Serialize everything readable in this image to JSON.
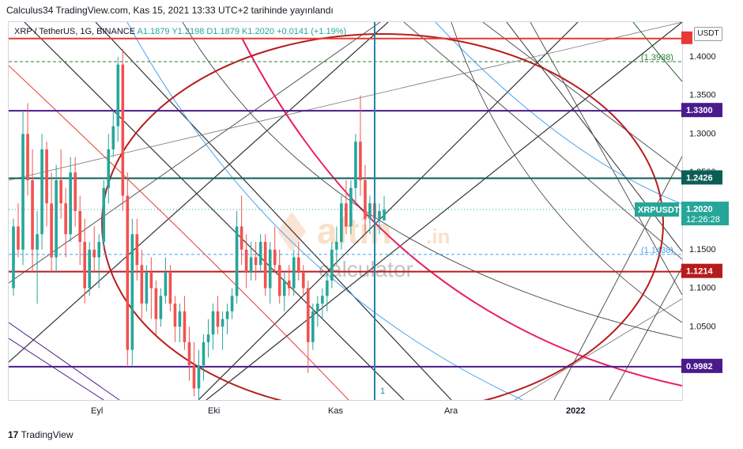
{
  "header": {
    "text": "Calculus34 TradingView.com, Kas 15, 2021 13:33 UTC+2 tarihinde yayınlandı"
  },
  "legend": {
    "symbol": "XRP / TetherUS, 1G, BINANCE",
    "o": "A1.1879",
    "h": "Y1.2198",
    "l": "D1.1879",
    "c": "K1.2020",
    "change": "+0.0141 (+1.19%)"
  },
  "axis": {
    "currency": "USDT"
  },
  "watermark": {
    "brand": "altin",
    "suffix": ".in",
    "sub": "calculator"
  },
  "footer": {
    "logo": "17",
    "brand": "TradingView"
  },
  "colors": {
    "up": "#26a69a",
    "down": "#ef5350",
    "purple": "#4a1a8c",
    "teal": "#0b5e57",
    "darkred": "#b71c1c",
    "red": "#e53935",
    "green_label": "#2e7d32",
    "blue": "#42a5f5",
    "crimson": "#e91e63"
  },
  "chart_data": {
    "type": "candlestick",
    "symbol": "XRP / TetherUS",
    "interval": "1G",
    "exchange": "BINANCE",
    "x_ticks": [
      "Eyl",
      "Eki",
      "Kas",
      "Ara",
      "2022"
    ],
    "y_ticks": [
      "1.4000",
      "1.3500",
      "1.3000",
      "1.2500",
      "1.1500",
      "1.1000",
      "1.0500"
    ],
    "ylim": [
      0.955,
      1.445
    ],
    "last_price": 1.202,
    "last_price_label": "XRPUSDT",
    "countdown": "12:26:28",
    "horizontal_levels": [
      {
        "value": 1.4237,
        "label": "",
        "color": "red"
      },
      {
        "value": 1.33,
        "label": "1.3300",
        "color": "purple"
      },
      {
        "value": 1.2426,
        "label": "1.2426",
        "color": "teal"
      },
      {
        "value": 1.1214,
        "label": "1.1214",
        "color": "darkred"
      },
      {
        "value": 0.9982,
        "label": "0.9982",
        "color": "purple"
      }
    ],
    "dashed_levels": [
      {
        "value": 1.3938,
        "label": "1.3938",
        "color": "green_label"
      },
      {
        "value": 1.1438,
        "label": "1.1438",
        "color": "blue"
      }
    ],
    "vertical_marker": {
      "label": "1"
    },
    "candles": [
      [
        1.1,
        1.19,
        1.09,
        1.18
      ],
      [
        1.18,
        1.21,
        1.14,
        1.15
      ],
      [
        1.15,
        1.33,
        1.13,
        1.3
      ],
      [
        1.3,
        1.34,
        1.22,
        1.24
      ],
      [
        1.24,
        1.28,
        1.12,
        1.15
      ],
      [
        1.15,
        1.2,
        1.08,
        1.17
      ],
      [
        1.17,
        1.3,
        1.15,
        1.28
      ],
      [
        1.28,
        1.29,
        1.18,
        1.21
      ],
      [
        1.21,
        1.25,
        1.12,
        1.14
      ],
      [
        1.14,
        1.26,
        1.12,
        1.24
      ],
      [
        1.24,
        1.28,
        1.19,
        1.21
      ],
      [
        1.21,
        1.23,
        1.14,
        1.17
      ],
      [
        1.17,
        1.27,
        1.16,
        1.25
      ],
      [
        1.25,
        1.27,
        1.18,
        1.2
      ],
      [
        1.2,
        1.22,
        1.13,
        1.16
      ],
      [
        1.16,
        1.19,
        1.08,
        1.1
      ],
      [
        1.1,
        1.16,
        1.09,
        1.15
      ],
      [
        1.15,
        1.18,
        1.12,
        1.14
      ],
      [
        1.14,
        1.17,
        1.1,
        1.16
      ],
      [
        1.16,
        1.24,
        1.15,
        1.23
      ],
      [
        1.23,
        1.3,
        1.21,
        1.28
      ],
      [
        1.28,
        1.33,
        1.27,
        1.31
      ],
      [
        1.31,
        1.4,
        1.29,
        1.39
      ],
      [
        1.39,
        1.41,
        1.2,
        1.22
      ],
      [
        1.22,
        1.25,
        1.0,
        1.02
      ],
      [
        1.02,
        1.19,
        1.0,
        1.17
      ],
      [
        1.17,
        1.19,
        1.11,
        1.13
      ],
      [
        1.13,
        1.15,
        1.06,
        1.08
      ],
      [
        1.08,
        1.13,
        1.07,
        1.12
      ],
      [
        1.12,
        1.14,
        1.06,
        1.1
      ],
      [
        1.1,
        1.11,
        1.04,
        1.06
      ],
      [
        1.06,
        1.1,
        1.05,
        1.09
      ],
      [
        1.09,
        1.14,
        1.08,
        1.12
      ],
      [
        1.12,
        1.13,
        1.07,
        1.08
      ],
      [
        1.08,
        1.09,
        1.03,
        1.05
      ],
      [
        1.05,
        1.08,
        1.03,
        1.07
      ],
      [
        1.07,
        1.09,
        1.02,
        1.03
      ],
      [
        1.03,
        1.05,
        0.98,
        1.0
      ],
      [
        1.0,
        1.03,
        0.96,
        0.97
      ],
      [
        0.97,
        1.02,
        0.95,
        1.0
      ],
      [
        1.0,
        1.04,
        0.98,
        1.03
      ],
      [
        1.03,
        1.06,
        1.01,
        1.04
      ],
      [
        1.04,
        1.08,
        1.02,
        1.07
      ],
      [
        1.07,
        1.09,
        1.04,
        1.05
      ],
      [
        1.05,
        1.07,
        1.02,
        1.06
      ],
      [
        1.06,
        1.08,
        1.04,
        1.07
      ],
      [
        1.07,
        1.1,
        1.06,
        1.09
      ],
      [
        1.09,
        1.2,
        1.08,
        1.18
      ],
      [
        1.18,
        1.22,
        1.13,
        1.15
      ],
      [
        1.15,
        1.17,
        1.1,
        1.12
      ],
      [
        1.12,
        1.16,
        1.11,
        1.14
      ],
      [
        1.14,
        1.16,
        1.11,
        1.13
      ],
      [
        1.13,
        1.17,
        1.12,
        1.16
      ],
      [
        1.16,
        1.17,
        1.09,
        1.1
      ],
      [
        1.1,
        1.16,
        1.08,
        1.15
      ],
      [
        1.15,
        1.18,
        1.12,
        1.13
      ],
      [
        1.13,
        1.15,
        1.08,
        1.09
      ],
      [
        1.09,
        1.12,
        1.07,
        1.11
      ],
      [
        1.11,
        1.13,
        1.09,
        1.1
      ],
      [
        1.1,
        1.15,
        1.09,
        1.14
      ],
      [
        1.14,
        1.16,
        1.11,
        1.12
      ],
      [
        1.12,
        1.13,
        1.09,
        1.1
      ],
      [
        1.1,
        1.11,
        0.99,
        1.03
      ],
      [
        1.03,
        1.08,
        1.02,
        1.07
      ],
      [
        1.07,
        1.09,
        1.05,
        1.08
      ],
      [
        1.08,
        1.1,
        1.06,
        1.09
      ],
      [
        1.09,
        1.12,
        1.07,
        1.11
      ],
      [
        1.11,
        1.16,
        1.1,
        1.15
      ],
      [
        1.15,
        1.18,
        1.13,
        1.16
      ],
      [
        1.16,
        1.22,
        1.15,
        1.21
      ],
      [
        1.21,
        1.24,
        1.17,
        1.18
      ],
      [
        1.18,
        1.24,
        1.17,
        1.23
      ],
      [
        1.23,
        1.3,
        1.21,
        1.29
      ],
      [
        1.29,
        1.35,
        1.22,
        1.24
      ],
      [
        1.24,
        1.26,
        1.17,
        1.19
      ],
      [
        1.19,
        1.22,
        1.17,
        1.21
      ],
      [
        1.21,
        1.22,
        1.18,
        1.19
      ],
      [
        1.19,
        1.21,
        1.17,
        1.2
      ],
      [
        1.1879,
        1.2198,
        1.1879,
        1.202
      ]
    ]
  }
}
